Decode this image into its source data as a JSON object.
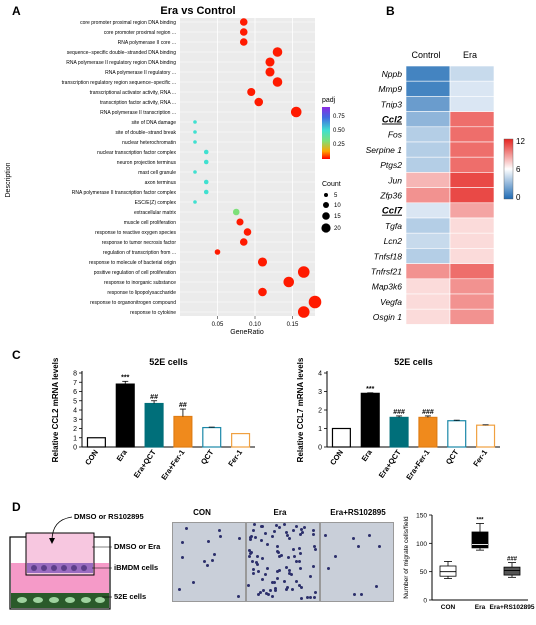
{
  "panel_letters": {
    "a": "A",
    "b": "B",
    "c": "C",
    "d": "D"
  },
  "panelA": {
    "title": "Era vs Control",
    "ylabel": "Description",
    "xlabel": "GeneRatio",
    "xticks": [
      "0.05",
      "0.10",
      "0.15"
    ],
    "padj_title": "padj",
    "padj_ticks": [
      "0.75",
      "0.50",
      "0.25"
    ],
    "count_title": "Count",
    "count_ticks": [
      "5",
      "10",
      "15",
      "20"
    ],
    "colors": {
      "low": "#ff0000",
      "mid": "#d47a2a",
      "cyan": "#40e0d0",
      "green": "#7de07a"
    }
  },
  "chart_data": [
    {
      "type": "scatter",
      "title": "Era vs Control",
      "xlabel": "GeneRatio",
      "ylabel": "Description",
      "xlim": [
        0.0,
        0.18
      ],
      "terms": [
        {
          "term": "core promoter proximal region DNA binding",
          "x": 0.085,
          "count": 10,
          "padj": 0.01
        },
        {
          "term": "core promoter proximal region ...",
          "x": 0.085,
          "count": 10,
          "padj": 0.01
        },
        {
          "term": "RNA polymerase II core ...",
          "x": 0.085,
          "count": 10,
          "padj": 0.01
        },
        {
          "term": "sequence−specific double−stranded DNA binding",
          "x": 0.13,
          "count": 14,
          "padj": 0.01
        },
        {
          "term": "RNA polymerase II regulatory region DNA binding",
          "x": 0.12,
          "count": 13,
          "padj": 0.01
        },
        {
          "term": "RNA polymerase II regulatory ...",
          "x": 0.12,
          "count": 13,
          "padj": 0.01
        },
        {
          "term": "transcription regulatory region sequence−specific ...",
          "x": 0.13,
          "count": 14,
          "padj": 0.01
        },
        {
          "term": "transcriptional activator activity, RNA ...",
          "x": 0.095,
          "count": 11,
          "padj": 0.02
        },
        {
          "term": "transcription factor activity, RNA ...",
          "x": 0.105,
          "count": 12,
          "padj": 0.02
        },
        {
          "term": "RNA polymerase II transcription ...",
          "x": 0.155,
          "count": 16,
          "padj": 0.02
        },
        {
          "term": "site of DNA damage",
          "x": 0.02,
          "count": 2,
          "padj": 0.65
        },
        {
          "term": "site of double−strand break",
          "x": 0.02,
          "count": 2,
          "padj": 0.65
        },
        {
          "term": "nuclear heterochromatin",
          "x": 0.02,
          "count": 2,
          "padj": 0.65
        },
        {
          "term": "nuclear transcription factor complex",
          "x": 0.035,
          "count": 4,
          "padj": 0.6
        },
        {
          "term": "neuron projection terminus",
          "x": 0.035,
          "count": 4,
          "padj": 0.6
        },
        {
          "term": "mast cell granule",
          "x": 0.02,
          "count": 2,
          "padj": 0.6
        },
        {
          "term": "axon terminus",
          "x": 0.035,
          "count": 4,
          "padj": 0.6
        },
        {
          "term": "RNA polymerase II transcription factor complex",
          "x": 0.035,
          "count": 4,
          "padj": 0.6
        },
        {
          "term": "ESC/E(Z) complex",
          "x": 0.02,
          "count": 2,
          "padj": 0.65
        },
        {
          "term": "extracellular matrix",
          "x": 0.075,
          "count": 8,
          "padj": 0.45
        },
        {
          "term": "muscle cell proliferation",
          "x": 0.08,
          "count": 9,
          "padj": 0.02
        },
        {
          "term": "response to reactive oxygen species",
          "x": 0.09,
          "count": 10,
          "padj": 0.02
        },
        {
          "term": "response to tumor necrosis factor",
          "x": 0.085,
          "count": 10,
          "padj": 0.02
        },
        {
          "term": "regulation of transcription from ...",
          "x": 0.05,
          "count": 6,
          "padj": 0.02
        },
        {
          "term": "response to molecule of bacterial origin",
          "x": 0.11,
          "count": 13,
          "padj": 0.02
        },
        {
          "term": "positive regulation of cell proliferation",
          "x": 0.165,
          "count": 18,
          "padj": 0.01
        },
        {
          "term": "response to inorganic substance",
          "x": 0.145,
          "count": 16,
          "padj": 0.01
        },
        {
          "term": "response to lipopolysaccharide",
          "x": 0.11,
          "count": 12,
          "padj": 0.01
        },
        {
          "term": "response to organonitrogen compound",
          "x": 0.18,
          "count": 20,
          "padj": 0.01
        },
        {
          "term": "response to cytokine",
          "x": 0.165,
          "count": 18,
          "padj": 0.01
        }
      ]
    },
    {
      "type": "heatmap",
      "columns": [
        "Control",
        "Era"
      ],
      "rows": [
        "Nppb",
        "Mmp9",
        "Tnip3",
        "Ccl2",
        "Fos",
        "Serpine 1",
        "Ptgs2",
        "Jun",
        "Zfp36",
        "Ccl7",
        "Tgfa",
        "Lcn2",
        "Tnfsf18",
        "Tnfrsf21",
        "Map3k6",
        "Vegfa",
        "Osgin 1"
      ],
      "values": [
        [
          1,
          4.5
        ],
        [
          1,
          5
        ],
        [
          2,
          5
        ],
        [
          3,
          10
        ],
        [
          4,
          10
        ],
        [
          4,
          10
        ],
        [
          4,
          10
        ],
        [
          8,
          11
        ],
        [
          9,
          11
        ],
        [
          5,
          8.5
        ],
        [
          4,
          7
        ],
        [
          4.5,
          7
        ],
        [
          4,
          7
        ],
        [
          9,
          10
        ],
        [
          7,
          9
        ],
        [
          7,
          9
        ],
        [
          7,
          9
        ]
      ],
      "scale": {
        "min": 0,
        "max": 12,
        "ticks": [
          "12",
          "6",
          "0"
        ]
      }
    },
    {
      "type": "bar",
      "title": "52E cells",
      "ylabel": "Relative CCL2 mRNA levels",
      "categories": [
        "CON",
        "Era",
        "Era+QCT",
        "Era+Fer-1",
        "QCT",
        "Fer-1"
      ],
      "values": [
        1.0,
        6.8,
        4.7,
        3.3,
        2.1,
        1.45
      ],
      "errors": [
        0,
        0.3,
        0.3,
        0.8,
        0.05,
        0
      ],
      "annotations": [
        "",
        "***",
        "##",
        "##",
        "",
        ""
      ],
      "yticks": [
        "0",
        "1",
        "2",
        "3",
        "4",
        "5",
        "6",
        "7",
        "8"
      ],
      "ylim": [
        0,
        8
      ]
    },
    {
      "type": "bar",
      "title": "52E cells",
      "ylabel": "Relative CCL7 mRNA levels",
      "categories": [
        "CON",
        "Era",
        "Era+QCT",
        "Era+Fer-1",
        "QCT",
        "Fer-1"
      ],
      "values": [
        1.0,
        2.9,
        1.6,
        1.6,
        1.42,
        1.18
      ],
      "errors": [
        0,
        0.03,
        0.08,
        0.08,
        0.03,
        0.02
      ],
      "annotations": [
        "",
        "***",
        "###",
        "###",
        "",
        ""
      ],
      "yticks": [
        "0",
        "1",
        "2",
        "3",
        "4"
      ],
      "ylim": [
        0,
        4
      ]
    },
    {
      "type": "box",
      "ylabel": "Number of migrate cells/field",
      "categories": [
        "CON",
        "Era",
        "Era+RS102895"
      ],
      "boxes": [
        {
          "min": 38,
          "q1": 42,
          "median": 50,
          "q3": 60,
          "max": 68
        },
        {
          "min": 88,
          "q1": 92,
          "median": 98,
          "q3": 120,
          "max": 135
        },
        {
          "min": 40,
          "q1": 44,
          "median": 52,
          "q3": 58,
          "max": 66
        }
      ],
      "annotations": [
        "",
        "***",
        "###"
      ],
      "yticks": [
        "0",
        "50",
        "100",
        "150"
      ],
      "ylim": [
        0,
        150
      ]
    }
  ],
  "panelD": {
    "labels": {
      "dmso_rs": "DMSO or RS102895",
      "dmso_era": "DMSO or Era",
      "ibmdm": "iBMDM cells",
      "e52": "52E cells"
    },
    "micro_titles": [
      "CON",
      "Era",
      "Era+RS102895"
    ]
  }
}
